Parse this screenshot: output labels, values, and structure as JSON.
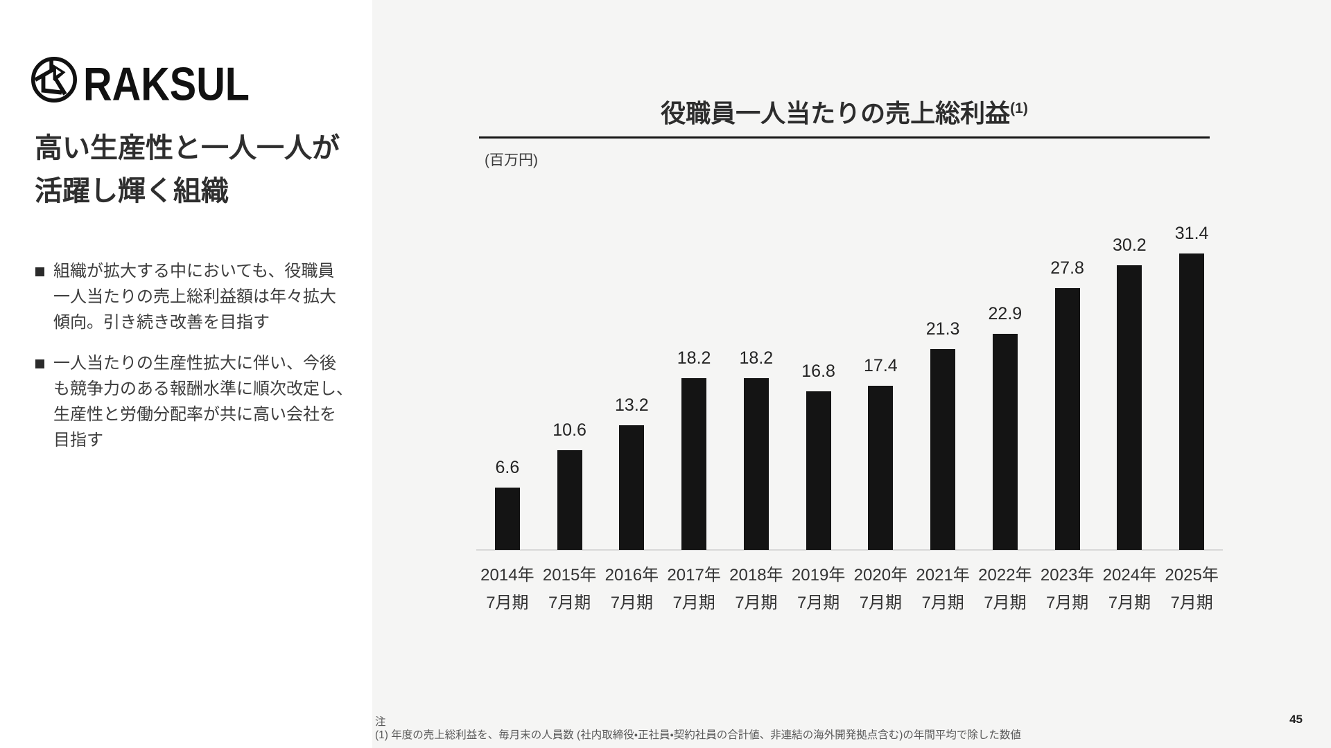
{
  "logo": {
    "brand": "RAKSUL",
    "mark": "raksul-circle-monogram"
  },
  "left_panel": {
    "title": "高い生産性と一人一人が\n活躍し輝く組織",
    "bullets": [
      "組織が拡大する中においても、役職員\n一人当たりの売上総利益額は年々拡大\n傾向。引き続き改善を目指す",
      "一人当たりの生産性拡大に伴い、今後\nも競争力のある報酬水準に順次改定し、\n生産性と労働分配率が共に高い会社を\n目指す"
    ]
  },
  "chart_data": {
    "type": "bar",
    "title": "役職員一人当たりの売上総利益",
    "title_superscript": "(1)",
    "unit_label": "(百万円)",
    "categories": [
      "2014年\n7月期",
      "2015年\n7月期",
      "2016年\n7月期",
      "2017年\n7月期",
      "2018年\n7月期",
      "2019年\n7月期",
      "2020年\n7月期",
      "2021年\n7月期",
      "2022年\n7月期",
      "2023年\n7月期",
      "2024年\n7月期",
      "2025年\n7月期"
    ],
    "values": [
      6.6,
      10.6,
      13.2,
      18.2,
      18.2,
      16.8,
      17.4,
      21.3,
      22.9,
      27.8,
      30.2,
      31.4
    ],
    "ylim": [
      0,
      35
    ],
    "bar_color": "#141414",
    "grid": false,
    "legend": false,
    "value_labels": true
  },
  "footer": {
    "note_heading": "注",
    "note": "(1) 年度の売上総利益を、毎月末の人員数 (社内取締役・正社員・契約社員の合計値、非連結の海外開発拠点含む)の年間平均で除した数値",
    "page_number": "45"
  }
}
